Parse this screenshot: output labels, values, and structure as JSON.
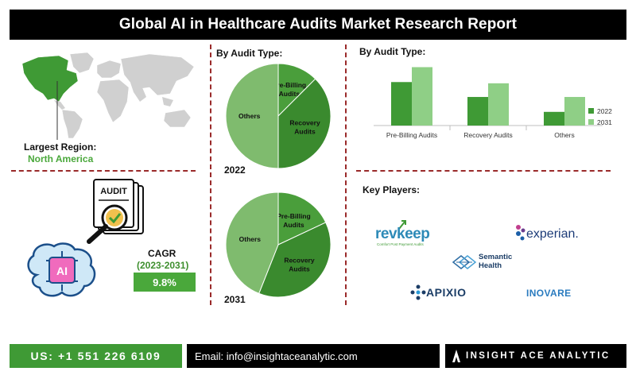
{
  "title": "Global AI in Healthcare Audits Market Research Report",
  "region": {
    "label": "Largest Region:",
    "value": "North America"
  },
  "cagr": {
    "label": "CAGR",
    "period": "(2023-2031)",
    "value": "9.8%"
  },
  "audit_icon_text": "AUDIT",
  "ai_icon_text": "AI",
  "pie_section_label": "By Audit Type:",
  "bar_section_label": "By Audit Type:",
  "key_players_label": "Key Players:",
  "players": [
    "revkeep",
    "experian.",
    "Semantic Health",
    "APIXIO",
    "INOVARE"
  ],
  "revkeep_tagline": "Comfort Post Payment Audits",
  "footer": {
    "phone": "US: +1 551 226 6109",
    "email": "Email: info@insightaceanalytic.com",
    "brand": "INSIGHT ACE ANALYTIC"
  },
  "colors": {
    "dark_green": "#3f9a35",
    "light_green": "#8fcf86",
    "pie_light": "#7fbb6e",
    "pie_mid": "#4a9e3b",
    "pie_dark": "#3a8a2e",
    "divider": "#9a2a2a"
  },
  "chart_data": [
    {
      "type": "pie",
      "year_label": "2022",
      "categories": [
        "Pre-Billing Audits",
        "Recovery Audits",
        "Others"
      ],
      "values": [
        12.5,
        37.5,
        50
      ]
    },
    {
      "type": "pie",
      "year_label": "2031",
      "categories": [
        "Pre-Billing Audits",
        "Recovery Audits",
        "Others"
      ],
      "values": [
        18,
        38,
        44
      ]
    },
    {
      "type": "bar",
      "categories": [
        "Pre-Billing Audits",
        "Recovery Audits",
        "Others"
      ],
      "series": [
        {
          "name": "2022",
          "values": [
            35,
            23,
            11
          ]
        },
        {
          "name": "2031",
          "values": [
            47,
            34,
            23
          ]
        }
      ],
      "ylim": [
        0,
        55
      ],
      "legend": "right"
    }
  ]
}
